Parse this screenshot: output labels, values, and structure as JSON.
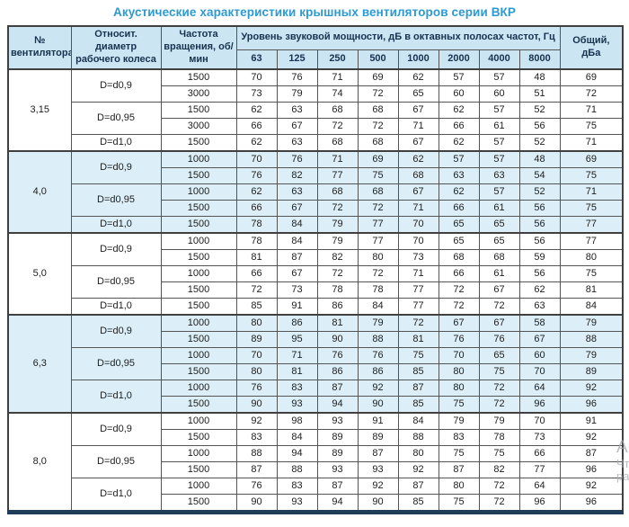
{
  "title": "Акустические характеристики крышных вентиляторов серии ВКР",
  "watermark": {
    "lines": [
      "Ак",
      "Чт",
      "ра"
    ]
  },
  "colors": {
    "title": "#2b9ad3",
    "header_bg": "#cbe5f3",
    "band_bg": "#dceff8",
    "border": "#404040",
    "bottom_bar": "#1f3c58",
    "header_text": "#16324f"
  },
  "table": {
    "headers": {
      "fan": "№ вентилятора",
      "diameter": "Относит. диаметр рабочего колеса",
      "rpm": "Частота вращения, об/мин",
      "spl_group": "Уровень звуковой мощности, дБ в октавных полосах частот, Гц",
      "frequencies": [
        "63",
        "125",
        "250",
        "500",
        "1000",
        "2000",
        "4000",
        "8000"
      ],
      "total": "Общий, дБа"
    },
    "groups": [
      {
        "fan": "3,15",
        "shaded": false,
        "subgroups": [
          {
            "diameter": "D=d0,9",
            "rows": [
              {
                "rpm": "1500",
                "values": [
                  70,
                  76,
                  71,
                  69,
                  62,
                  57,
                  57,
                  48
                ],
                "total": 69
              },
              {
                "rpm": "3000",
                "values": [
                  73,
                  79,
                  74,
                  72,
                  65,
                  60,
                  60,
                  51
                ],
                "total": 72
              }
            ]
          },
          {
            "diameter": "D=d0,95",
            "rows": [
              {
                "rpm": "1500",
                "values": [
                  62,
                  63,
                  68,
                  68,
                  67,
                  62,
                  57,
                  52
                ],
                "total": 71
              },
              {
                "rpm": "3000",
                "values": [
                  66,
                  67,
                  72,
                  72,
                  71,
                  66,
                  61,
                  56
                ],
                "total": 75
              }
            ]
          },
          {
            "diameter": "D=d1,0",
            "rows": [
              {
                "rpm": "1500",
                "values": [
                  62,
                  63,
                  68,
                  68,
                  67,
                  62,
                  57,
                  52
                ],
                "total": 71
              }
            ]
          }
        ]
      },
      {
        "fan": "4,0",
        "shaded": true,
        "subgroups": [
          {
            "diameter": "D=d0,9",
            "rows": [
              {
                "rpm": "1000",
                "values": [
                  70,
                  76,
                  71,
                  69,
                  62,
                  57,
                  57,
                  48
                ],
                "total": 69
              },
              {
                "rpm": "1500",
                "values": [
                  76,
                  82,
                  77,
                  75,
                  68,
                  63,
                  63,
                  54
                ],
                "total": 75
              }
            ]
          },
          {
            "diameter": "D=d0,95",
            "rows": [
              {
                "rpm": "1000",
                "values": [
                  62,
                  63,
                  68,
                  68,
                  67,
                  62,
                  57,
                  52
                ],
                "total": 71
              },
              {
                "rpm": "1500",
                "values": [
                  66,
                  67,
                  72,
                  72,
                  71,
                  66,
                  61,
                  56
                ],
                "total": 75
              }
            ]
          },
          {
            "diameter": "D=d1,0",
            "rows": [
              {
                "rpm": "1500",
                "values": [
                  78,
                  84,
                  79,
                  77,
                  70,
                  65,
                  65,
                  56
                ],
                "total": 77
              }
            ]
          }
        ]
      },
      {
        "fan": "5,0",
        "shaded": false,
        "subgroups": [
          {
            "diameter": "D=d0,9",
            "rows": [
              {
                "rpm": "1000",
                "values": [
                  78,
                  84,
                  79,
                  77,
                  70,
                  65,
                  65,
                  56
                ],
                "total": 77
              },
              {
                "rpm": "1500",
                "values": [
                  81,
                  87,
                  82,
                  80,
                  73,
                  68,
                  68,
                  59
                ],
                "total": 80
              }
            ]
          },
          {
            "diameter": "D=d0,95",
            "rows": [
              {
                "rpm": "1000",
                "values": [
                  66,
                  67,
                  72,
                  72,
                  71,
                  66,
                  61,
                  56
                ],
                "total": 75
              },
              {
                "rpm": "1500",
                "values": [
                  72,
                  73,
                  78,
                  78,
                  77,
                  72,
                  67,
                  62
                ],
                "total": 81
              }
            ]
          },
          {
            "diameter": "D=d1,0",
            "rows": [
              {
                "rpm": "1500",
                "values": [
                  85,
                  91,
                  86,
                  84,
                  77,
                  72,
                  72,
                  63
                ],
                "total": 84
              }
            ]
          }
        ]
      },
      {
        "fan": "6,3",
        "shaded": true,
        "subgroups": [
          {
            "diameter": "D=d0,9",
            "rows": [
              {
                "rpm": "1000",
                "values": [
                  80,
                  86,
                  81,
                  79,
                  72,
                  67,
                  67,
                  58
                ],
                "total": 79
              },
              {
                "rpm": "1500",
                "values": [
                  89,
                  95,
                  90,
                  88,
                  81,
                  76,
                  76,
                  67
                ],
                "total": 88
              }
            ]
          },
          {
            "diameter": "D=d0,95",
            "rows": [
              {
                "rpm": "1000",
                "values": [
                  70,
                  71,
                  76,
                  76,
                  75,
                  70,
                  65,
                  60
                ],
                "total": 79
              },
              {
                "rpm": "1500",
                "values": [
                  80,
                  81,
                  86,
                  86,
                  85,
                  80,
                  75,
                  70
                ],
                "total": 89
              }
            ]
          },
          {
            "diameter": "D=d1,0",
            "rows": [
              {
                "rpm": "1000",
                "values": [
                  76,
                  83,
                  87,
                  92,
                  87,
                  80,
                  72,
                  64
                ],
                "total": 92
              },
              {
                "rpm": "1500",
                "values": [
                  90,
                  93,
                  94,
                  90,
                  85,
                  75,
                  72,
                  96
                ],
                "total": 96
              }
            ]
          }
        ]
      },
      {
        "fan": "8,0",
        "shaded": false,
        "subgroups": [
          {
            "diameter": "D=d0,9",
            "rows": [
              {
                "rpm": "1000",
                "values": [
                  92,
                  98,
                  93,
                  91,
                  84,
                  79,
                  79,
                  70
                ],
                "total": 91
              },
              {
                "rpm": "1500",
                "values": [
                  83,
                  84,
                  89,
                  89,
                  88,
                  83,
                  78,
                  73
                ],
                "total": 92
              }
            ]
          },
          {
            "diameter": "D=d0,95",
            "rows": [
              {
                "rpm": "1000",
                "values": [
                  88,
                  94,
                  89,
                  87,
                  80,
                  75,
                  75,
                  66
                ],
                "total": 87
              },
              {
                "rpm": "1500",
                "values": [
                  87,
                  88,
                  93,
                  93,
                  92,
                  87,
                  82,
                  77
                ],
                "total": 96
              }
            ]
          },
          {
            "diameter": "D=d1,0",
            "rows": [
              {
                "rpm": "1000",
                "values": [
                  76,
                  83,
                  87,
                  92,
                  87,
                  80,
                  72,
                  64
                ],
                "total": 92
              },
              {
                "rpm": "1500",
                "values": [
                  90,
                  93,
                  94,
                  90,
                  85,
                  75,
                  72,
                  96
                ],
                "total": 96
              }
            ]
          }
        ]
      }
    ]
  }
}
